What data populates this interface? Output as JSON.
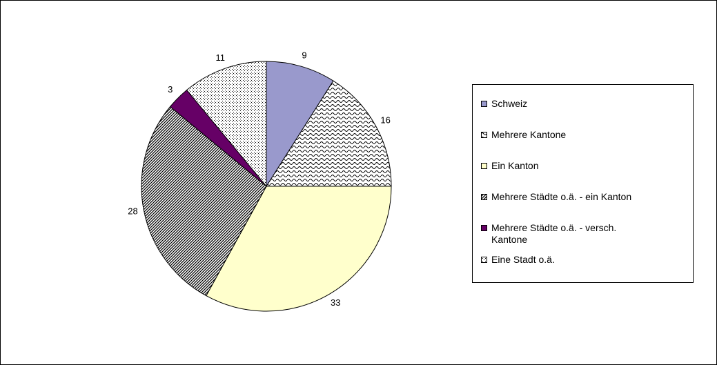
{
  "chart_data": {
    "type": "pie",
    "categories": [
      "Schweiz",
      "Mehrere Kantone",
      "Ein Kanton",
      "Mehrere Städte o.ä. - ein Kanton",
      "Mehrere Städte o.ä. - versch. Kantone",
      "Eine Stadt o.ä."
    ],
    "values": [
      9,
      16,
      33,
      28,
      3,
      11
    ],
    "colors": [
      "#9999cc",
      "#ffffff",
      "#ffffcc",
      "#ffffff",
      "#660066",
      "#ffffff"
    ],
    "patterns": [
      "solid",
      "wave",
      "solid",
      "stripes",
      "solid",
      "dots"
    ],
    "legend": "right"
  }
}
